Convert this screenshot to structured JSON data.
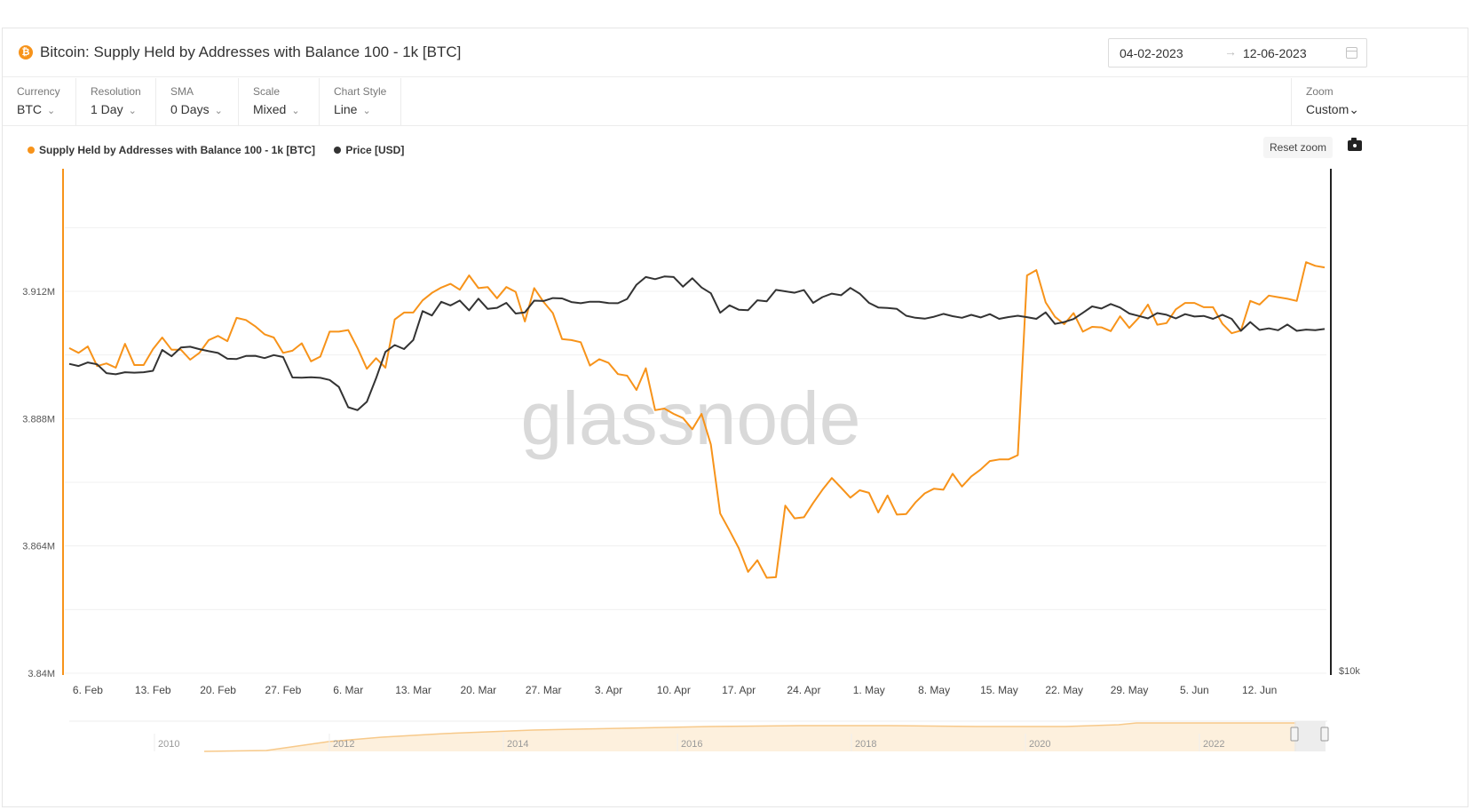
{
  "header": {
    "title": "Bitcoin: Supply Held by Addresses with Balance 100 - 1k [BTC]",
    "coin_icon": "bitcoin-icon",
    "date_start": "04-02-2023",
    "date_arrow": "→",
    "date_end": "12-06-2023",
    "calendar_icon": "calendar-icon"
  },
  "controls": [
    {
      "label": "Currency",
      "value": "BTC"
    },
    {
      "label": "Resolution",
      "value": "1 Day"
    },
    {
      "label": "SMA",
      "value": "0 Days"
    },
    {
      "label": "Scale",
      "value": "Mixed"
    },
    {
      "label": "Chart Style",
      "value": "Line"
    }
  ],
  "zoom": {
    "label": "Zoom",
    "value": "Custom"
  },
  "chevron": "⌄",
  "reset_zoom": "Reset zoom",
  "camera_icon": "camera-icon",
  "watermark": "glassnode",
  "colors": {
    "supply": "#f7931a",
    "price": "#333333",
    "grid": "#f0f0f0"
  },
  "chart_data": {
    "type": "line",
    "legend_position": "top-left",
    "grid": true,
    "x_tick_labels": [
      "6. Feb",
      "13. Feb",
      "20. Feb",
      "27. Feb",
      "6. Mar",
      "13. Mar",
      "20. Mar",
      "27. Mar",
      "3. Apr",
      "10. Apr",
      "17. Apr",
      "24. Apr",
      "1. May",
      "8. May",
      "15. May",
      "22. May",
      "29. May",
      "5. Jun",
      "12. Jun"
    ],
    "x_start": "2023-02-04",
    "x_end": "2023-06-12",
    "y_left": {
      "tick_labels": [
        "3.912M",
        "3.888M",
        "3.864M",
        "3.84M"
      ],
      "tick_values": [
        3912000,
        3888000,
        3864000,
        3840000
      ],
      "range": [
        3840000,
        3912000
      ],
      "scale": "linear"
    },
    "y_right": {
      "tick_labels": [
        "$10k"
      ],
      "scale": "log"
    },
    "series": [
      {
        "name": "Supply Held by Addresses with Balance 100 - 1k [BTC]",
        "axis": "left",
        "values": [
          3901300,
          3900400,
          3901600,
          3897900,
          3898400,
          3897600,
          3902100,
          3898100,
          3898100,
          3901100,
          3903300,
          3901000,
          3901000,
          3899100,
          3900400,
          3902800,
          3903600,
          3902600,
          3907000,
          3906600,
          3905400,
          3903900,
          3903300,
          3900400,
          3900800,
          3902200,
          3898800,
          3899700,
          3904400,
          3904400,
          3904700,
          3901300,
          3897400,
          3899400,
          3897600,
          3906700,
          3908000,
          3908000,
          3910300,
          3911700,
          3912700,
          3913400,
          3912300,
          3915000,
          3912600,
          3912800,
          3910700,
          3912800,
          3911900,
          3906300,
          3912600,
          3910000,
          3907900,
          3903000,
          3902800,
          3902400,
          3898000,
          3899200,
          3898500,
          3896400,
          3896100,
          3893400,
          3897500,
          3889600,
          3889900,
          3888900,
          3888100,
          3886000,
          3888900,
          3883100,
          3870100,
          3866900,
          3863600,
          3859100,
          3861300,
          3858000,
          3858100,
          3871600,
          3869200,
          3869400,
          3872100,
          3874600,
          3876800,
          3875000,
          3873100,
          3874500,
          3874000,
          3870300,
          3873500,
          3869900,
          3870000,
          3872200,
          3873900,
          3874800,
          3874600,
          3877600,
          3875200,
          3877100,
          3878400,
          3880000,
          3880300,
          3880300,
          3881100,
          3915000,
          3916000,
          3909900,
          3907200,
          3905800,
          3907900,
          3904400,
          3905300,
          3905200,
          3904500,
          3907300,
          3905100,
          3907000,
          3909500,
          3905700,
          3906000,
          3908600,
          3909800,
          3909800,
          3909000,
          3909000,
          3905900,
          3904100,
          3904600,
          3910200,
          3909500,
          3911200,
          3910900,
          3910600,
          3910200,
          3917500,
          3916800,
          3916500
        ]
      },
      {
        "name": "Price [USD]",
        "axis": "right",
        "values": [
          23330,
          23180,
          23430,
          23300,
          22680,
          22600,
          22740,
          22710,
          22740,
          22840,
          24340,
          23880,
          24520,
          24580,
          24400,
          24250,
          24120,
          23700,
          23680,
          23900,
          23910,
          23740,
          23960,
          23820,
          22380,
          22370,
          22400,
          22360,
          22210,
          21740,
          20440,
          20260,
          20780,
          22330,
          24200,
          24710,
          24410,
          25090,
          27400,
          27040,
          28190,
          27880,
          28300,
          27470,
          28460,
          27590,
          27680,
          28100,
          27200,
          27290,
          28290,
          28260,
          28510,
          28480,
          28170,
          28070,
          28200,
          28190,
          28080,
          28070,
          28440,
          29700,
          30400,
          30210,
          30450,
          30400,
          29520,
          30290,
          29450,
          28930,
          27270,
          27890,
          27520,
          27480,
          28320,
          28240,
          29230,
          29110,
          28980,
          29220,
          28100,
          28600,
          28900,
          28760,
          29410,
          28900,
          28100,
          27710,
          27660,
          27590,
          27020,
          26850,
          26780,
          26940,
          27170,
          26980,
          26850,
          27090,
          26880,
          27150,
          26760,
          26910,
          27020,
          26900,
          26760,
          27300,
          26350,
          26500,
          26750,
          27260,
          27800,
          27620,
          28000,
          27700,
          27200,
          27000,
          26800,
          27240,
          27100,
          26800,
          27150,
          26950,
          27000,
          26760,
          27100,
          26760,
          25800,
          26500,
          25870,
          26000,
          25850,
          26300,
          25800,
          25900,
          25850,
          25950
        ]
      }
    ],
    "navigator": {
      "tick_labels": [
        "2010",
        "2012",
        "2014",
        "2016",
        "2018",
        "2020",
        "2022"
      ]
    }
  }
}
